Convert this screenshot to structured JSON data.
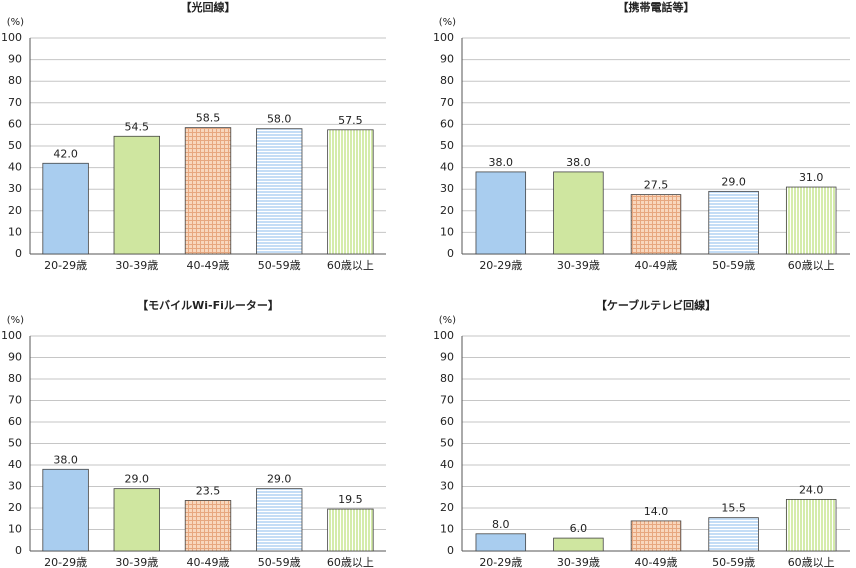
{
  "chart_data": [
    {
      "type": "bar",
      "title": "【光回線】",
      "ylabel": "(%)",
      "ylim": [
        0,
        100
      ],
      "yticks": [
        0,
        10,
        20,
        30,
        40,
        50,
        60,
        70,
        80,
        90,
        100
      ],
      "categories": [
        "20-29歳",
        "30-39歳",
        "40-49歳",
        "50-59歳",
        "60歳以上"
      ],
      "values": [
        42.0,
        54.5,
        58.5,
        58.0,
        57.5
      ],
      "value_labels": [
        "42.0",
        "54.5",
        "58.5",
        "58.0",
        "57.5"
      ],
      "grid": true
    },
    {
      "type": "bar",
      "title": "【携帯電話等】",
      "ylabel": "(%)",
      "ylim": [
        0,
        100
      ],
      "yticks": [
        0,
        10,
        20,
        30,
        40,
        50,
        60,
        70,
        80,
        90,
        100
      ],
      "categories": [
        "20-29歳",
        "30-39歳",
        "40-49歳",
        "50-59歳",
        "60歳以上"
      ],
      "values": [
        38.0,
        38.0,
        27.5,
        29.0,
        31.0
      ],
      "value_labels": [
        "38.0",
        "38.0",
        "27.5",
        "29.0",
        "31.0"
      ],
      "grid": true
    },
    {
      "type": "bar",
      "title": "【モバイルWi-Fiルーター】",
      "ylabel": "(%)",
      "ylim": [
        0,
        100
      ],
      "yticks": [
        0,
        10,
        20,
        30,
        40,
        50,
        60,
        70,
        80,
        90,
        100
      ],
      "categories": [
        "20-29歳",
        "30-39歳",
        "40-49歳",
        "50-59歳",
        "60歳以上"
      ],
      "values": [
        38.0,
        29.0,
        23.5,
        29.0,
        19.5
      ],
      "value_labels": [
        "38.0",
        "29.0",
        "23.5",
        "29.0",
        "19.5"
      ],
      "grid": true
    },
    {
      "type": "bar",
      "title": "【ケーブルテレビ回線】",
      "ylabel": "(%)",
      "ylim": [
        0,
        100
      ],
      "yticks": [
        0,
        10,
        20,
        30,
        40,
        50,
        60,
        70,
        80,
        90,
        100
      ],
      "categories": [
        "20-29歳",
        "30-39歳",
        "40-49歳",
        "50-59歳",
        "60歳以上"
      ],
      "values": [
        8.0,
        6.0,
        14.0,
        15.5,
        24.0
      ],
      "value_labels": [
        "8.0",
        "6.0",
        "14.0",
        "15.5",
        "24.0"
      ],
      "grid": true
    }
  ],
  "bar_styles": [
    {
      "fill": "#a9cdef",
      "pattern": "solid"
    },
    {
      "fill": "#cfe6a0",
      "pattern": "solid"
    },
    {
      "fill": "#f8d7bd",
      "pattern": "grid",
      "pattern_color": "#e7a77f"
    },
    {
      "fill": "#d3e6f9",
      "pattern": "horizontal-lines",
      "pattern_color": "#ffffff"
    },
    {
      "fill": "#dff0b7",
      "pattern": "vertical-lines",
      "pattern_color": "#ffffff"
    }
  ],
  "colors": {
    "grid": "#c6c6c6",
    "axis": "#555555",
    "bar_outline": "#444444"
  }
}
